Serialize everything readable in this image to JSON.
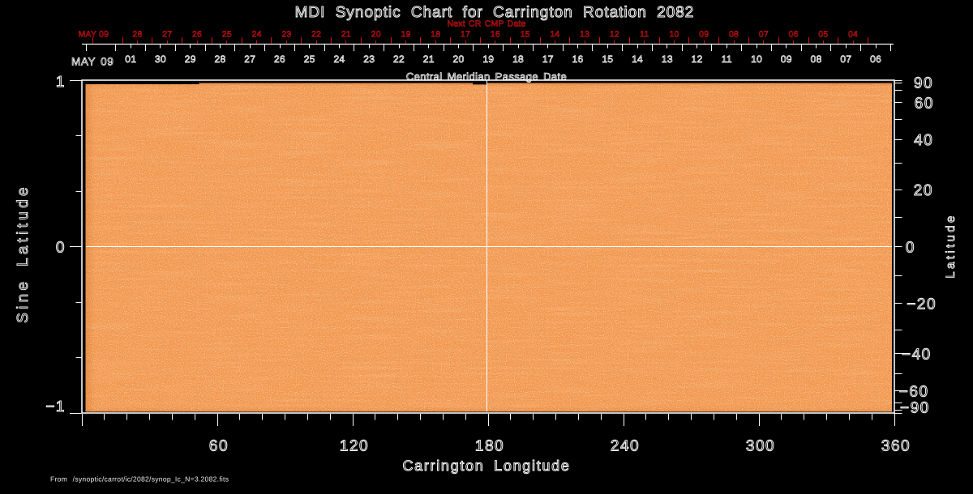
{
  "title": "MDI Synoptic Chart for Carrington Rotation 2082",
  "colors": {
    "background": "#000000",
    "foreground": "#ffffff",
    "red_axis": "#d01212",
    "image_base": "#f2944b"
  },
  "top_red_axis": {
    "title": "Next CR CMP Date",
    "start_label": "MAY 09",
    "day_labels": [
      "28",
      "27",
      "26",
      "25",
      "24",
      "23",
      "22",
      "21",
      "20",
      "19",
      "18",
      "17",
      "16",
      "15",
      "14",
      "13",
      "12",
      "11",
      "10",
      "09",
      "08",
      "07",
      "06",
      "05",
      "04"
    ]
  },
  "top_white_axis": {
    "title": "Central Meridian Passage Date",
    "start_label": "MAY 09",
    "day_labels": [
      "01",
      "30",
      "29",
      "28",
      "27",
      "26",
      "25",
      "24",
      "23",
      "22",
      "21",
      "20",
      "19",
      "18",
      "17",
      "16",
      "15",
      "14",
      "13",
      "12",
      "11",
      "10",
      "09",
      "08",
      "07",
      "06"
    ]
  },
  "left_axis": {
    "title": "Sine Latitude",
    "tick_labels": [
      "1",
      "0",
      "−1"
    ]
  },
  "right_axis": {
    "title": "Latitude",
    "tick_labels": [
      "90",
      "60",
      "40",
      "20",
      "0",
      "−20",
      "−40",
      "−60",
      "−90"
    ]
  },
  "bottom_axis": {
    "title": "Carrington Longitude",
    "tick_labels": [
      "60",
      "120",
      "180",
      "240",
      "300",
      "360"
    ]
  },
  "source_note": "From /synoptic/carrot/ic/2082/synop_Ic_N=3.2082.fits",
  "chart_data": {
    "type": "heatmap",
    "title": "MDI Synoptic Chart for Carrington Rotation 2082",
    "xlabel": "Carrington Longitude",
    "ylabel": "Sine Latitude",
    "y2label": "Latitude",
    "top_axis_label": "Central Meridian Passage Date",
    "top_axis2_label": "Next CR CMP Date",
    "x_range": [
      0,
      360
    ],
    "y_range": [
      -1,
      1
    ],
    "x_major_ticks": [
      60,
      120,
      180,
      240,
      300,
      360
    ],
    "x_minor_step": 10,
    "left_major_ticks": [
      1,
      0,
      -1
    ],
    "right_tick_degrees": [
      90,
      60,
      40,
      20,
      0,
      -20,
      -40,
      -60,
      -90
    ],
    "right_minor_step_degrees": 10,
    "cmp_date_month": "MAY 09",
    "cmp_date_days": [
      "01",
      "30",
      "29",
      "28",
      "27",
      "26",
      "25",
      "24",
      "23",
      "22",
      "21",
      "20",
      "19",
      "18",
      "17",
      "16",
      "15",
      "14",
      "13",
      "12",
      "11",
      "10",
      "09",
      "08",
      "07",
      "06"
    ],
    "next_cr_cmp_month": "MAY 09",
    "next_cr_cmp_days": [
      "28",
      "27",
      "26",
      "25",
      "24",
      "23",
      "22",
      "21",
      "20",
      "19",
      "18",
      "17",
      "16",
      "15",
      "14",
      "13",
      "12",
      "11",
      "10",
      "09",
      "08",
      "07",
      "06",
      "05",
      "04"
    ],
    "reference_lines": {
      "carrington_longitude": 180,
      "sine_latitude": 0
    },
    "image_description": "uniform orange solar continuum intensity granulation with fine bright speckle noise, no sunspots",
    "grid": false,
    "legend": false
  }
}
